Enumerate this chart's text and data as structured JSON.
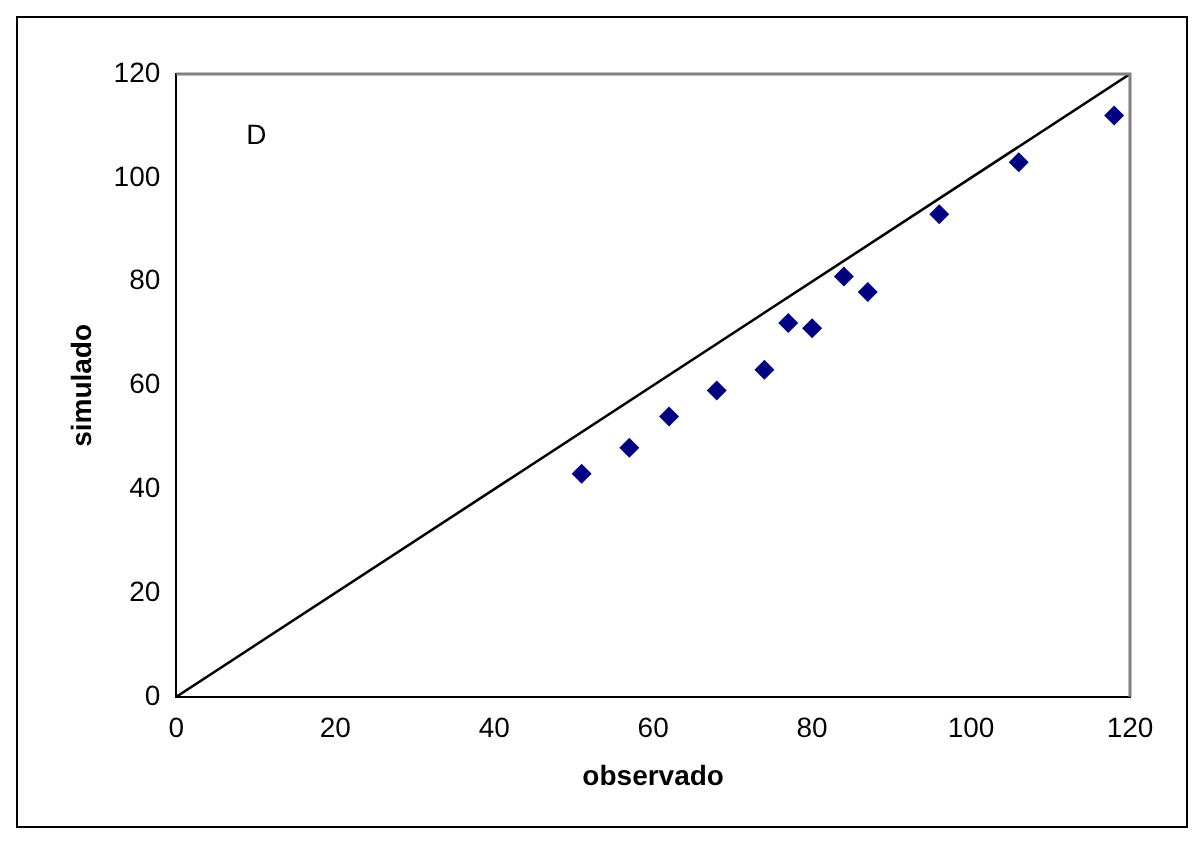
{
  "chart_data": {
    "type": "scatter",
    "xlabel": "observado",
    "ylabel": "simulado",
    "annotations": [
      "D"
    ],
    "xlim": [
      0,
      120
    ],
    "ylim": [
      0,
      120
    ],
    "xticks": [
      0,
      20,
      40,
      60,
      80,
      100,
      120
    ],
    "yticks": [
      0,
      20,
      40,
      60,
      80,
      100,
      120
    ],
    "grid": false,
    "legend": false,
    "marker": "diamond",
    "series": [
      {
        "color": "#000080",
        "x": [
          51,
          57,
          62,
          68,
          74,
          77,
          80,
          84,
          87,
          96,
          106,
          118
        ],
        "values": [
          43,
          48,
          54,
          59,
          63,
          72,
          71,
          81,
          78,
          93,
          103,
          112
        ]
      },
      {
        "type": "line",
        "color": "#000000",
        "marker": "none",
        "x": [
          0,
          120
        ],
        "values": [
          0,
          120
        ]
      }
    ]
  }
}
